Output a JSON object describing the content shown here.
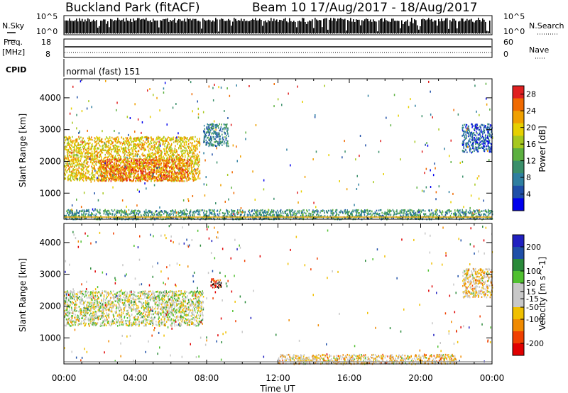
{
  "header": {
    "station": "Buckland Park (fitACF)",
    "beam_date": "Beam 10  17/Aug/2017 - 18/Aug/2017"
  },
  "status_panel": {
    "nsky_label": "N.Sky",
    "nsearch_label": "N.Search",
    "nsky_ticks": [
      "10^5",
      "10^0"
    ],
    "nsearch_ticks": [
      "10^5",
      "10^0"
    ],
    "freq_label_1": "Freq.",
    "freq_label_2": "[MHz]",
    "freq_ticks": [
      "18",
      "8"
    ],
    "nave_label": "Nave",
    "nave_ticks": [
      "60",
      "0"
    ],
    "cpid_label": "CPID",
    "cpid_text": "normal (fast) 151"
  },
  "colors": {
    "power_scale": [
      "#0000ee",
      "#1f4fa8",
      "#2f7fa0",
      "#3a8f6a",
      "#5cb040",
      "#a6c81e",
      "#e6d000",
      "#f0a000",
      "#f06a00",
      "#e02020"
    ],
    "velocity_scale": [
      "#2020c0",
      "#1f4fa8",
      "#2a8a3a",
      "#50c030",
      "#c8c8c8",
      "#c8c8c8",
      "#f0c000",
      "#f08a00",
      "#f04000",
      "#e00000"
    ]
  },
  "chart_data": [
    {
      "type": "heatmap",
      "name": "power",
      "ylabel": "Slant Range [km]",
      "xlabel": "Time UT",
      "x_ticks": [
        "00:00",
        "04:00",
        "08:00",
        "12:00",
        "16:00",
        "20:00",
        "00:00"
      ],
      "y_ticks": [
        1000,
        2000,
        3000,
        4000
      ],
      "ylim": [
        180,
        4600
      ],
      "xlim_hours": [
        0,
        24
      ],
      "colorbar_label": "Power [dB]",
      "colorbar_ticks": [
        4,
        8,
        12,
        16,
        20,
        24,
        28
      ],
      "colorbar_range": [
        0,
        30
      ],
      "regions": [
        {
          "t0": 0.0,
          "t1": 7.6,
          "r0": 1400,
          "r1": 2800,
          "value": 20
        },
        {
          "t0": 2.0,
          "t1": 7.0,
          "r0": 1400,
          "r1": 2100,
          "value": 25
        },
        {
          "t0": 7.8,
          "t1": 9.2,
          "r0": 2500,
          "r1": 3200,
          "value": 8
        },
        {
          "t0": 22.3,
          "t1": 24.0,
          "r0": 2300,
          "r1": 3200,
          "value": 6
        },
        {
          "t0": 0.0,
          "t1": 24.0,
          "r0": 200,
          "r1": 500,
          "value": 10
        }
      ]
    },
    {
      "type": "heatmap",
      "name": "velocity",
      "ylabel": "Slant Range [km]",
      "xlabel": "Time UT",
      "x_ticks": [
        "00:00",
        "04:00",
        "08:00",
        "12:00",
        "16:00",
        "20:00",
        "00:00"
      ],
      "y_ticks": [
        1000,
        2000,
        3000,
        4000
      ],
      "ylim": [
        180,
        4600
      ],
      "xlim_hours": [
        0,
        24
      ],
      "colorbar_label": "Velocity [m s^-1]",
      "colorbar_ticks": [
        200,
        100,
        50,
        15,
        -15,
        -50,
        -100,
        -200
      ],
      "colorbar_range": [
        -250,
        250
      ],
      "regions": [
        {
          "t0": 0.0,
          "t1": 7.8,
          "r0": 1400,
          "r1": 2500,
          "value": 0
        },
        {
          "t0": 8.2,
          "t1": 8.8,
          "r0": 2600,
          "r1": 2900,
          "value": -200
        },
        {
          "t0": 22.3,
          "t1": 24.0,
          "r0": 2300,
          "r1": 3200,
          "value": -50
        },
        {
          "t0": 12.0,
          "t1": 22.0,
          "r0": 200,
          "r1": 500,
          "value": -50
        }
      ]
    }
  ]
}
